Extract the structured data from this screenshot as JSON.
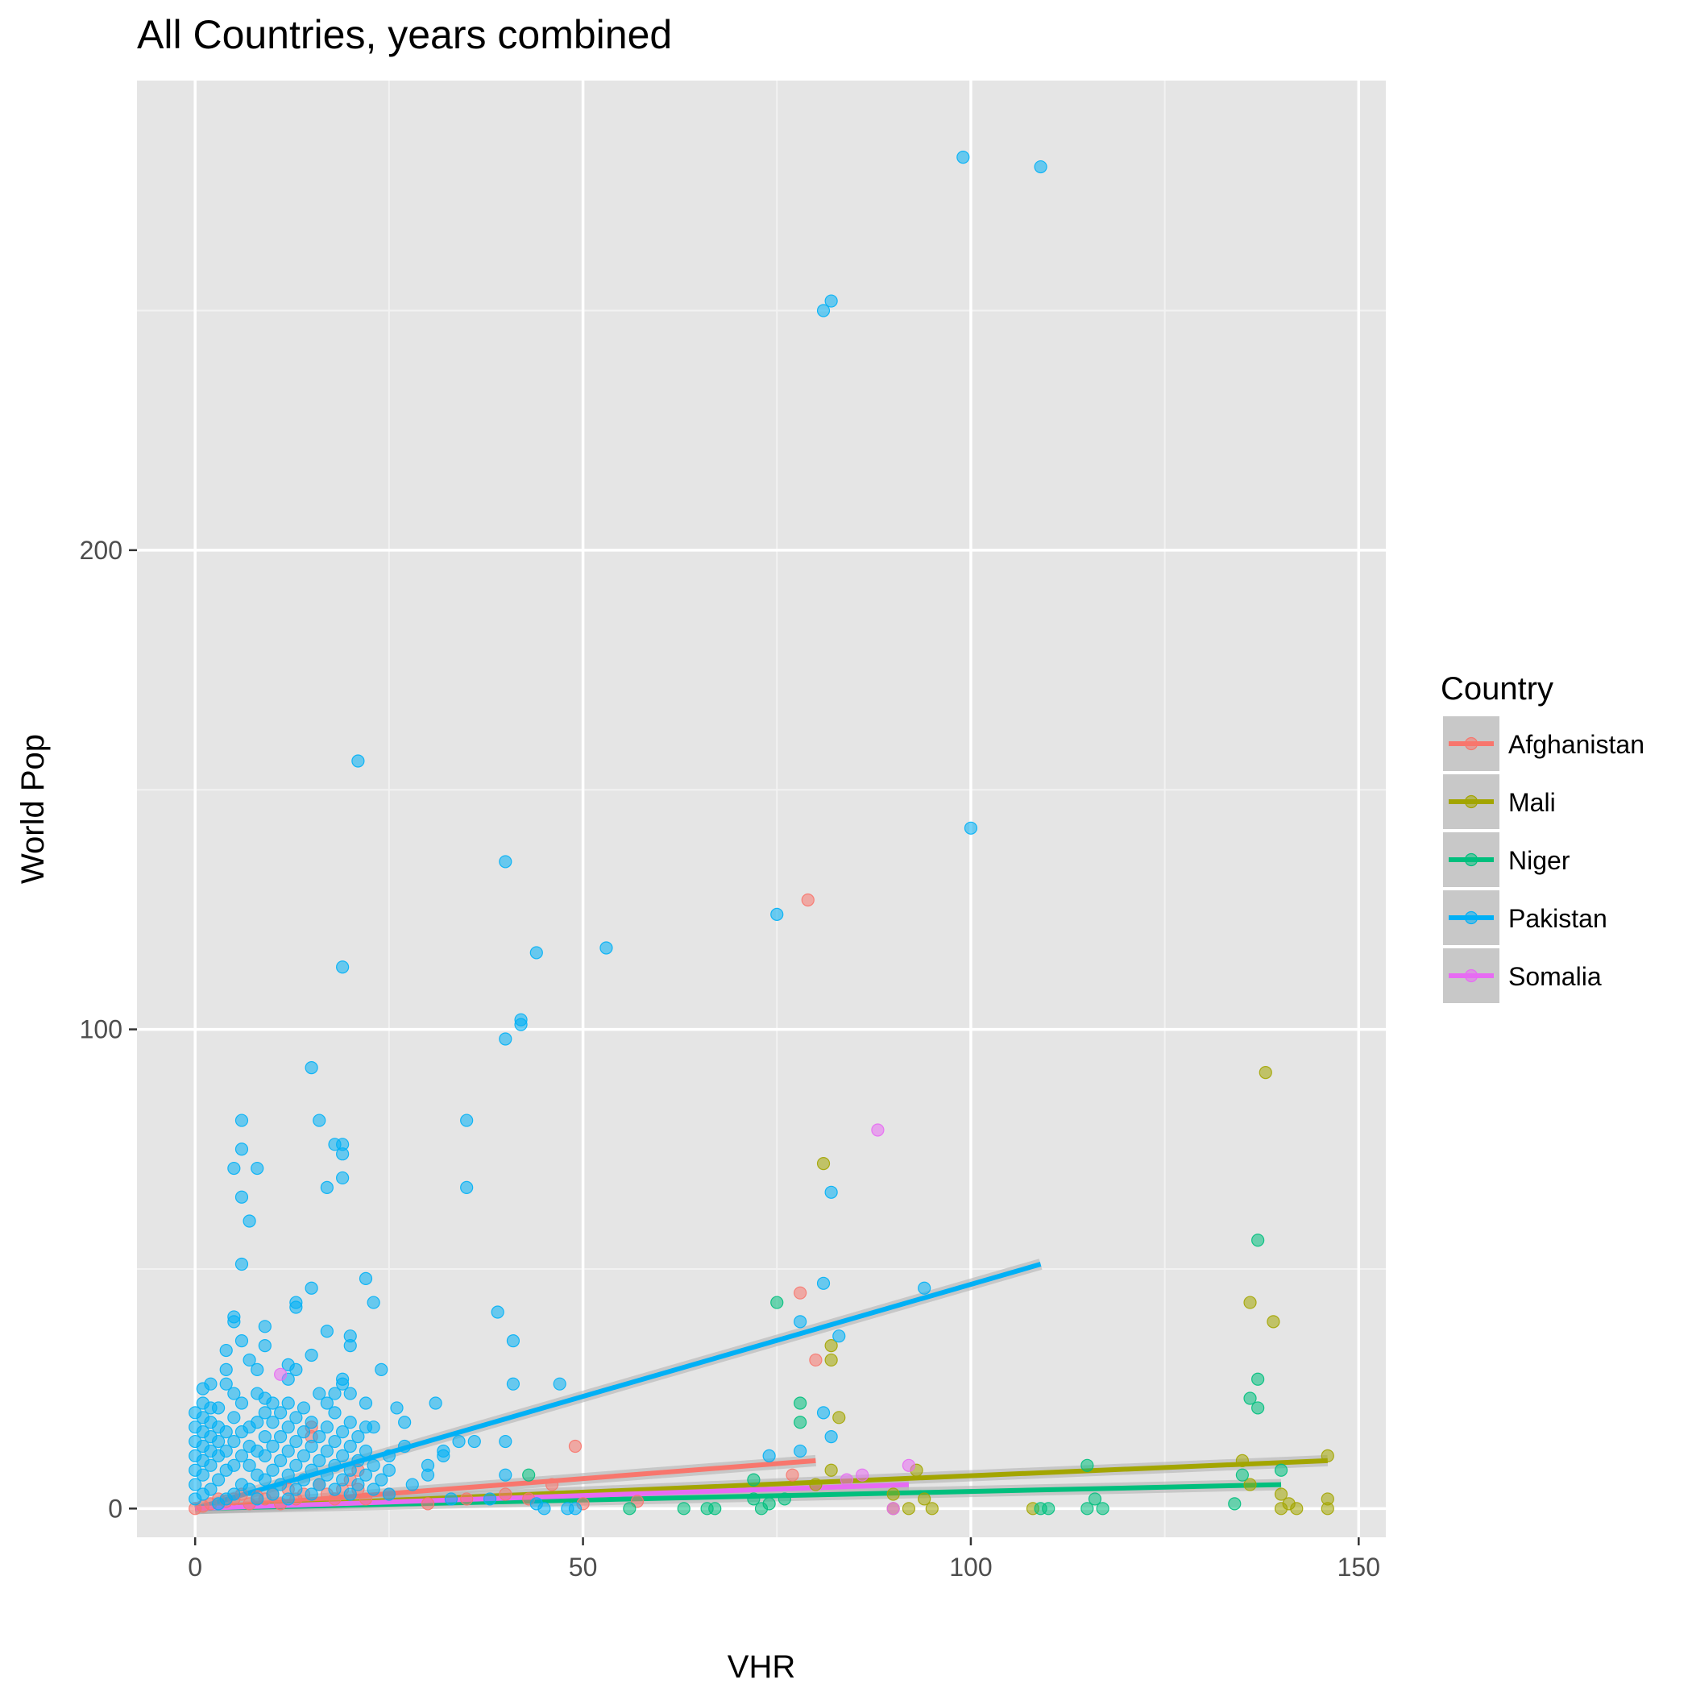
{
  "chart_data": {
    "type": "scatter",
    "title": "All Countries, years combined",
    "xlabel": "VHR",
    "ylabel": "World Pop",
    "xlim": [
      -7.5,
      153.5
    ],
    "ylim": [
      -6,
      298
    ],
    "x_ticks": [
      0,
      50,
      100,
      150
    ],
    "y_ticks": [
      0,
      100,
      200
    ],
    "grid": true,
    "legend": {
      "title": "Country",
      "placement": "right"
    },
    "series": [
      {
        "name": "Afghanistan",
        "color": "#F8766D",
        "points": [
          [
            0,
            0
          ],
          [
            1,
            0.5
          ],
          [
            2,
            1
          ],
          [
            3,
            2
          ],
          [
            4,
            1.5
          ],
          [
            5,
            2
          ],
          [
            6,
            3
          ],
          [
            7,
            1
          ],
          [
            8,
            2.5
          ],
          [
            9,
            2
          ],
          [
            10,
            3
          ],
          [
            11,
            1
          ],
          [
            12,
            4
          ],
          [
            13,
            2
          ],
          [
            14,
            3
          ],
          [
            15,
            15
          ],
          [
            15,
            17
          ],
          [
            16,
            5
          ],
          [
            17,
            3
          ],
          [
            18,
            2
          ],
          [
            19,
            4
          ],
          [
            20,
            6
          ],
          [
            21,
            8
          ],
          [
            21,
            4
          ],
          [
            22,
            2
          ],
          [
            25,
            3
          ],
          [
            30,
            1
          ],
          [
            35,
            2
          ],
          [
            40,
            3
          ],
          [
            43,
            2
          ],
          [
            46,
            5
          ],
          [
            49,
            13
          ],
          [
            50,
            1
          ],
          [
            57,
            1.5
          ],
          [
            77,
            7
          ],
          [
            78,
            45
          ],
          [
            79,
            127
          ],
          [
            80,
            31
          ]
        ],
        "fit": {
          "x0": 0,
          "y0": 0,
          "x1": 80,
          "y1": 10
        }
      },
      {
        "name": "Mali",
        "color": "#A3A500",
        "points": [
          [
            80,
            5
          ],
          [
            81,
            72
          ],
          [
            82,
            34
          ],
          [
            82,
            31
          ],
          [
            82,
            8
          ],
          [
            83,
            19
          ],
          [
            90,
            3
          ],
          [
            90,
            0
          ],
          [
            92,
            0
          ],
          [
            93,
            8
          ],
          [
            94,
            2
          ],
          [
            95,
            0
          ],
          [
            108,
            0
          ],
          [
            135,
            10
          ],
          [
            136,
            43
          ],
          [
            136,
            5
          ],
          [
            138,
            91
          ],
          [
            139,
            39
          ],
          [
            140,
            0
          ],
          [
            140,
            3
          ],
          [
            141,
            1
          ],
          [
            142,
            0
          ],
          [
            146,
            11
          ],
          [
            146,
            2
          ],
          [
            146,
            0
          ]
        ],
        "fit": {
          "x0": 0,
          "y0": 0,
          "x1": 146,
          "y1": 10
        }
      },
      {
        "name": "Niger",
        "color": "#00BF7D",
        "points": [
          [
            43,
            7
          ],
          [
            56,
            0
          ],
          [
            63,
            0
          ],
          [
            66,
            0
          ],
          [
            67,
            0
          ],
          [
            72,
            2
          ],
          [
            72,
            6
          ],
          [
            73,
            0
          ],
          [
            74,
            1
          ],
          [
            75,
            43
          ],
          [
            76,
            2
          ],
          [
            78,
            22
          ],
          [
            78,
            18
          ],
          [
            109,
            0
          ],
          [
            110,
            0
          ],
          [
            115,
            9
          ],
          [
            115,
            0
          ],
          [
            116,
            2
          ],
          [
            117,
            0
          ],
          [
            134,
            1
          ],
          [
            135,
            7
          ],
          [
            136,
            23
          ],
          [
            137,
            56
          ],
          [
            137,
            27
          ],
          [
            137,
            21
          ],
          [
            140,
            8
          ]
        ],
        "fit": {
          "x0": 0,
          "y0": 0,
          "x1": 140,
          "y1": 5
        }
      },
      {
        "name": "Pakistan",
        "color": "#00B0F6",
        "points": [
          [
            0,
            2
          ],
          [
            0,
            5
          ],
          [
            0,
            8
          ],
          [
            0,
            11
          ],
          [
            0,
            14
          ],
          [
            0,
            17
          ],
          [
            0,
            20
          ],
          [
            1,
            3
          ],
          [
            1,
            7
          ],
          [
            1,
            10
          ],
          [
            1,
            13
          ],
          [
            1,
            16
          ],
          [
            1,
            19
          ],
          [
            1,
            22
          ],
          [
            1,
            25
          ],
          [
            2,
            4
          ],
          [
            2,
            9
          ],
          [
            2,
            12
          ],
          [
            2,
            15
          ],
          [
            2,
            18
          ],
          [
            2,
            21
          ],
          [
            2,
            26
          ],
          [
            3,
            1
          ],
          [
            3,
            6
          ],
          [
            3,
            11
          ],
          [
            3,
            14
          ],
          [
            3,
            17
          ],
          [
            3,
            21
          ],
          [
            4,
            2
          ],
          [
            4,
            8
          ],
          [
            4,
            12
          ],
          [
            4,
            16
          ],
          [
            4,
            26
          ],
          [
            4,
            29
          ],
          [
            4,
            33
          ],
          [
            5,
            3
          ],
          [
            5,
            9
          ],
          [
            5,
            14
          ],
          [
            5,
            19
          ],
          [
            5,
            24
          ],
          [
            5,
            39
          ],
          [
            5,
            40
          ],
          [
            5,
            71
          ],
          [
            6,
            5
          ],
          [
            6,
            11
          ],
          [
            6,
            16
          ],
          [
            6,
            22
          ],
          [
            6,
            35
          ],
          [
            6,
            51
          ],
          [
            6,
            65
          ],
          [
            6,
            75
          ],
          [
            6,
            81
          ],
          [
            7,
            4
          ],
          [
            7,
            9
          ],
          [
            7,
            13
          ],
          [
            7,
            17
          ],
          [
            7,
            31
          ],
          [
            7,
            60
          ],
          [
            8,
            2
          ],
          [
            8,
            7
          ],
          [
            8,
            12
          ],
          [
            8,
            18
          ],
          [
            8,
            24
          ],
          [
            8,
            29
          ],
          [
            8,
            71
          ],
          [
            9,
            6
          ],
          [
            9,
            11
          ],
          [
            9,
            15
          ],
          [
            9,
            20
          ],
          [
            9,
            23
          ],
          [
            9,
            34
          ],
          [
            9,
            38
          ],
          [
            10,
            3
          ],
          [
            10,
            8
          ],
          [
            10,
            13
          ],
          [
            10,
            18
          ],
          [
            10,
            22
          ],
          [
            11,
            5
          ],
          [
            11,
            10
          ],
          [
            11,
            15
          ],
          [
            11,
            20
          ],
          [
            12,
            2
          ],
          [
            12,
            7
          ],
          [
            12,
            12
          ],
          [
            12,
            17
          ],
          [
            12,
            22
          ],
          [
            12,
            27
          ],
          [
            12,
            30
          ],
          [
            13,
            4
          ],
          [
            13,
            9
          ],
          [
            13,
            14
          ],
          [
            13,
            19
          ],
          [
            13,
            29
          ],
          [
            13,
            42
          ],
          [
            13,
            43
          ],
          [
            14,
            6
          ],
          [
            14,
            11
          ],
          [
            14,
            16
          ],
          [
            14,
            21
          ],
          [
            15,
            3
          ],
          [
            15,
            8
          ],
          [
            15,
            13
          ],
          [
            15,
            18
          ],
          [
            15,
            32
          ],
          [
            15,
            46
          ],
          [
            15,
            92
          ],
          [
            16,
            5
          ],
          [
            16,
            10
          ],
          [
            16,
            15
          ],
          [
            16,
            24
          ],
          [
            16,
            81
          ],
          [
            17,
            7
          ],
          [
            17,
            12
          ],
          [
            17,
            17
          ],
          [
            17,
            22
          ],
          [
            17,
            37
          ],
          [
            17,
            67
          ],
          [
            18,
            4
          ],
          [
            18,
            9
          ],
          [
            18,
            14
          ],
          [
            18,
            20
          ],
          [
            18,
            24
          ],
          [
            18,
            76
          ],
          [
            19,
            6
          ],
          [
            19,
            11
          ],
          [
            19,
            16
          ],
          [
            19,
            27
          ],
          [
            19,
            26
          ],
          [
            19,
            69
          ],
          [
            19,
            74
          ],
          [
            19,
            76
          ],
          [
            19,
            113
          ],
          [
            20,
            3
          ],
          [
            20,
            8
          ],
          [
            20,
            13
          ],
          [
            20,
            18
          ],
          [
            20,
            24
          ],
          [
            20,
            36
          ],
          [
            20,
            34
          ],
          [
            21,
            5
          ],
          [
            21,
            10
          ],
          [
            21,
            15
          ],
          [
            21,
            156
          ],
          [
            22,
            7
          ],
          [
            22,
            12
          ],
          [
            22,
            17
          ],
          [
            22,
            48
          ],
          [
            22,
            22
          ],
          [
            23,
            4
          ],
          [
            23,
            9
          ],
          [
            23,
            17
          ],
          [
            23,
            43
          ],
          [
            24,
            6
          ],
          [
            24,
            29
          ],
          [
            25,
            3
          ],
          [
            25,
            8
          ],
          [
            25,
            11
          ],
          [
            26,
            21
          ],
          [
            27,
            13
          ],
          [
            27,
            18
          ],
          [
            28,
            5
          ],
          [
            30,
            7
          ],
          [
            30,
            9
          ],
          [
            31,
            22
          ],
          [
            32,
            11
          ],
          [
            32,
            12
          ],
          [
            33,
            2
          ],
          [
            34,
            14
          ],
          [
            35,
            81
          ],
          [
            35,
            67
          ],
          [
            36,
            14
          ],
          [
            38,
            2
          ],
          [
            39,
            41
          ],
          [
            40,
            98
          ],
          [
            40,
            135
          ],
          [
            40,
            7
          ],
          [
            40,
            14
          ],
          [
            41,
            35
          ],
          [
            41,
            26
          ],
          [
            42,
            101
          ],
          [
            42,
            102
          ],
          [
            44,
            116
          ],
          [
            44,
            1
          ],
          [
            45,
            0
          ],
          [
            47,
            26
          ],
          [
            48,
            0
          ],
          [
            49,
            0
          ],
          [
            53,
            117
          ],
          [
            74,
            11
          ],
          [
            75,
            124
          ],
          [
            78,
            12
          ],
          [
            78,
            39
          ],
          [
            81,
            47
          ],
          [
            81,
            20
          ],
          [
            81,
            250
          ],
          [
            82,
            252
          ],
          [
            82,
            66
          ],
          [
            82,
            15
          ],
          [
            83,
            36
          ],
          [
            94,
            46
          ],
          [
            99,
            282
          ],
          [
            100,
            142
          ],
          [
            109,
            280
          ]
        ],
        "fit": {
          "x0": 0,
          "y0": 0,
          "x1": 109,
          "y1": 51
        }
      },
      {
        "name": "Somalia",
        "color": "#E76BF3",
        "points": [
          [
            11,
            28
          ],
          [
            84,
            6
          ],
          [
            86,
            7
          ],
          [
            88,
            79
          ],
          [
            90,
            0
          ],
          [
            92,
            9
          ]
        ],
        "fit": {
          "x0": 0,
          "y0": 0,
          "x1": 92,
          "y1": 5
        }
      }
    ]
  }
}
